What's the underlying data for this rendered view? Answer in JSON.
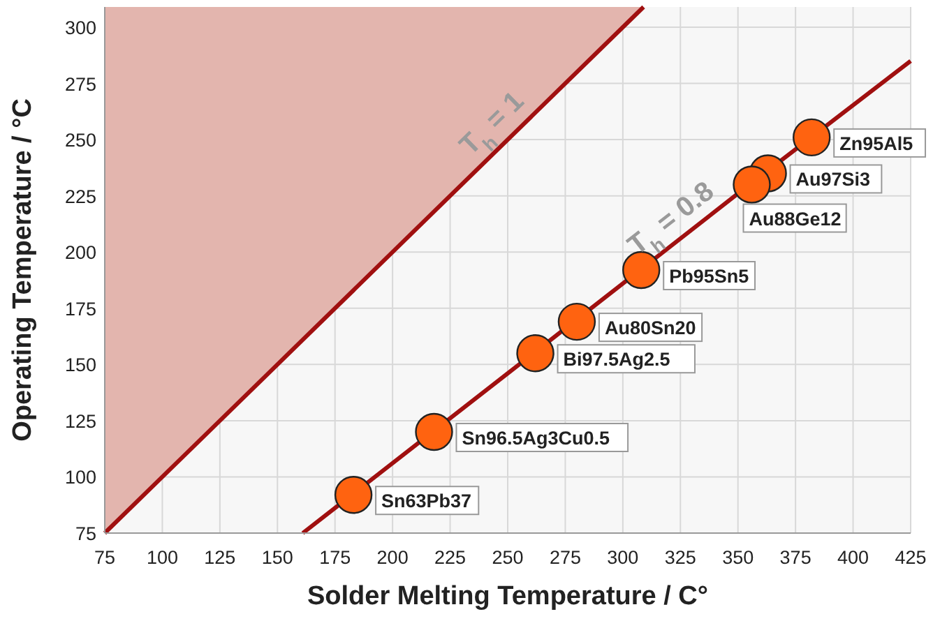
{
  "chart_data": {
    "type": "scatter",
    "xlabel": "Solder Melting Temperature / C°",
    "ylabel": "Operating Temperature / °C",
    "xlim": [
      75,
      425
    ],
    "ylim": [
      75,
      309
    ],
    "xticks": [
      75,
      100,
      125,
      150,
      175,
      200,
      225,
      250,
      275,
      300,
      325,
      350,
      375,
      400,
      425
    ],
    "yticks": [
      75,
      100,
      125,
      150,
      175,
      200,
      225,
      250,
      275,
      300
    ],
    "grid": true,
    "series": [
      {
        "type": "line",
        "color": "#a01010",
        "x": [
          75,
          150,
          225,
          309
        ],
        "values": [
          75,
          150,
          225,
          309
        ]
      },
      {
        "type": "line",
        "color": "#a01010",
        "x": [
          161,
          250,
          350,
          425
        ],
        "values": [
          75,
          146,
          226,
          285
        ]
      },
      {
        "marker": "circle",
        "color": "#ff6310",
        "x": [
          183,
          218,
          262,
          280,
          308,
          363,
          356,
          382
        ],
        "values": [
          92,
          120,
          155,
          169,
          192,
          235,
          230,
          251
        ]
      }
    ],
    "annotations": [
      {
        "text": "T$_{h}$ = 1",
        "x": 250,
        "y": 250
      },
      {
        "text": "T$_{h}$ = 0.8",
        "x": 327,
        "y": 207
      },
      {
        "text": "Sn63Pb37",
        "x": 183,
        "y": 92
      },
      {
        "text": "Sn96.5Ag3Cu0.5",
        "x": 218,
        "y": 120
      },
      {
        "text": "Bi97.5Ag2.5",
        "x": 262,
        "y": 155
      },
      {
        "text": "Au80Sn20",
        "x": 280,
        "y": 169
      },
      {
        "text": "Pb95Sn5",
        "x": 308,
        "y": 192
      },
      {
        "text": "Au97Si3",
        "x": 363,
        "y": 235
      },
      {
        "text": "Au88Ge12",
        "x": 356,
        "y": 230
      },
      {
        "text": "Zn95Al5",
        "x": 382,
        "y": 251
      }
    ]
  }
}
